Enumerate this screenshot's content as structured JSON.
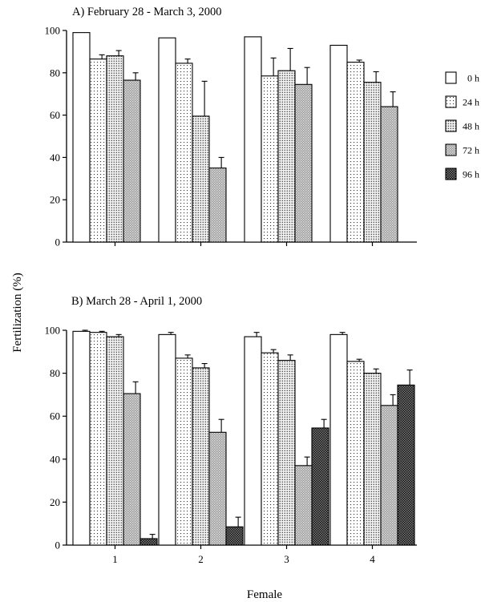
{
  "ylabel": "Fertilization (%)",
  "xlabel": "Female",
  "legend": {
    "placement": "right",
    "entries": [
      {
        "label": "0 h",
        "pattern": "white"
      },
      {
        "label": "24 h",
        "pattern": "sparse-dots"
      },
      {
        "label": "48 h",
        "pattern": "dense-dots"
      },
      {
        "label": "72 h",
        "pattern": "grey-texture"
      },
      {
        "label": "96 h",
        "pattern": "dark-check"
      }
    ]
  },
  "chart_data": [
    {
      "type": "bar",
      "title": "A) February 28 - March 3, 2000",
      "categories": [
        "1",
        "2",
        "3",
        "4"
      ],
      "show_tick_labels": false,
      "ylim": [
        0,
        100
      ],
      "yticks": [
        0,
        20,
        40,
        60,
        80,
        100
      ],
      "grid": false,
      "series": [
        {
          "name": "0 h",
          "values": [
            99,
            96.5,
            97,
            93
          ],
          "errors": [
            0,
            0,
            0,
            0
          ]
        },
        {
          "name": "24 h",
          "values": [
            86.5,
            84.5,
            78.5,
            85
          ],
          "errors": [
            2,
            2,
            8.5,
            1
          ]
        },
        {
          "name": "48 h",
          "values": [
            88,
            59.5,
            81,
            75.5
          ],
          "errors": [
            2.5,
            16.5,
            10.5,
            5
          ]
        },
        {
          "name": "72 h",
          "values": [
            76.5,
            35,
            74.5,
            64
          ],
          "errors": [
            3.5,
            5,
            8,
            7
          ]
        }
      ]
    },
    {
      "type": "bar",
      "title": "B) March 28 - April 1, 2000",
      "categories": [
        "1",
        "2",
        "3",
        "4"
      ],
      "show_tick_labels": true,
      "ylim": [
        0,
        100
      ],
      "yticks": [
        0,
        20,
        40,
        60,
        80,
        100
      ],
      "grid": false,
      "series": [
        {
          "name": "0 h",
          "values": [
            99.5,
            98,
            97,
            98
          ],
          "errors": [
            0.5,
            1,
            2,
            1
          ]
        },
        {
          "name": "24 h",
          "values": [
            99,
            87,
            89.5,
            85.5
          ],
          "errors": [
            0.5,
            1.5,
            1.5,
            1
          ]
        },
        {
          "name": "48 h",
          "values": [
            97,
            82.5,
            86,
            80
          ],
          "errors": [
            1,
            2,
            2.5,
            2
          ]
        },
        {
          "name": "72 h",
          "values": [
            70.5,
            52.5,
            37,
            65
          ],
          "errors": [
            5.5,
            6,
            4,
            5
          ]
        },
        {
          "name": "96 h",
          "values": [
            3,
            8.5,
            54.5,
            74.5
          ],
          "errors": [
            2,
            4.5,
            4,
            7
          ]
        }
      ]
    }
  ]
}
